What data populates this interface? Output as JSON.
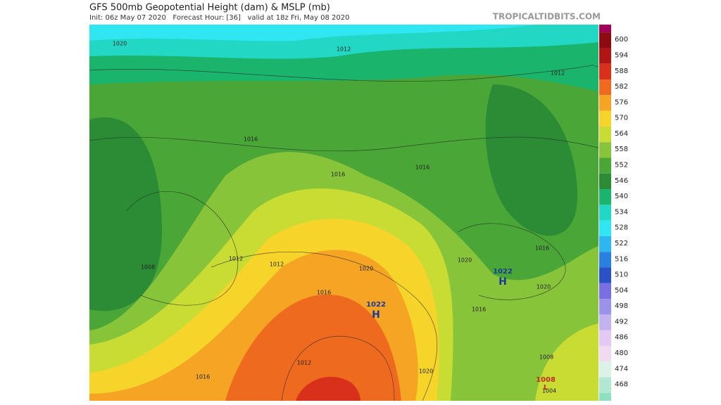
{
  "header": {
    "title": "GFS 500mb Geopotential Height (dam) & MSLP (mb)",
    "subtitle": "Init: 06z May 07 2020   Forecast Hour: [36]   valid at 18z Fri, May 08 2020",
    "brand": "TROPICALTIDBITS.COM"
  },
  "colorbar": {
    "top_color": "#a0005a",
    "bins": [
      {
        "label": "600",
        "color": "#8c0a10"
      },
      {
        "label": "594",
        "color": "#b01414"
      },
      {
        "label": "588",
        "color": "#d8301a"
      },
      {
        "label": "582",
        "color": "#ee6a1e"
      },
      {
        "label": "576",
        "color": "#f6a424"
      },
      {
        "label": "570",
        "color": "#f6d42a"
      },
      {
        "label": "564",
        "color": "#c8dc34"
      },
      {
        "label": "558",
        "color": "#88c43a"
      },
      {
        "label": "552",
        "color": "#4aa636"
      },
      {
        "label": "546",
        "color": "#2c8c36"
      },
      {
        "label": "540",
        "color": "#1ab46c"
      },
      {
        "label": "534",
        "color": "#22d8c4"
      },
      {
        "label": "528",
        "color": "#30e6f2"
      },
      {
        "label": "522",
        "color": "#2eb6f0"
      },
      {
        "label": "516",
        "color": "#2a80de"
      },
      {
        "label": "510",
        "color": "#2a52c6"
      },
      {
        "label": "504",
        "color": "#7870e0"
      },
      {
        "label": "498",
        "color": "#9c92ea"
      },
      {
        "label": "492",
        "color": "#c2b2f0"
      },
      {
        "label": "486",
        "color": "#e2caf2"
      },
      {
        "label": "480",
        "color": "#f2daf0"
      },
      {
        "label": "474",
        "color": "#daf2e8"
      },
      {
        "label": "468",
        "color": "#b2e8d2"
      }
    ],
    "bottom_color": "#8ee0c0"
  },
  "map": {
    "labels": [
      "1020",
      "1012",
      "1012",
      "1016",
      "1016",
      "1016",
      "1012",
      "1012",
      "1020",
      "1008",
      "1016",
      "1020",
      "1016",
      "1020",
      "1016",
      "1016",
      "1012",
      "1020",
      "1008",
      "1004"
    ],
    "highs": [
      {
        "value": "1022",
        "mark": "H"
      },
      {
        "value": "1022",
        "mark": "H"
      }
    ],
    "lows": [
      {
        "value": "1008",
        "mark": "L"
      }
    ]
  }
}
